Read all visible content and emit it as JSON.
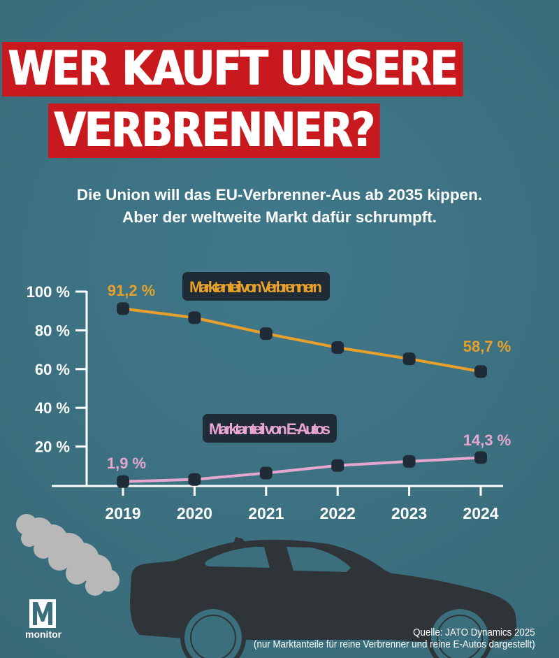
{
  "headline": {
    "line1": "WER KAUFT UNSERE",
    "line2": "VERBRENNER?"
  },
  "subtitle": {
    "line1": "Die Union will das EU-Verbrenner-Aus ab 2035 kippen.",
    "line2": "Aber der weltweite Markt dafür schrumpft."
  },
  "colors": {
    "background": "#3b6f7d",
    "headline_bg": "#c8191e",
    "verbrenner": "#e8a02a",
    "e_autos": "#e6a6cf",
    "marker": "#1f2b36",
    "label_box": "#1f2b36",
    "car": "#2f3438",
    "smoke": "#b8b8b8"
  },
  "chart_data": {
    "type": "line",
    "title": "",
    "xlabel": "",
    "ylabel": "",
    "categories": [
      "2019",
      "2020",
      "2021",
      "2022",
      "2023",
      "2024"
    ],
    "y_ticks": [
      "100 %",
      "80 %",
      "60 %",
      "40 %",
      "20 %"
    ],
    "y_tick_values": [
      100,
      80,
      60,
      40,
      20
    ],
    "ylim": [
      0,
      100
    ],
    "grid": false,
    "series": [
      {
        "name": "Marktanteil von Verbrennern",
        "values": [
          91.2,
          86.5,
          78.3,
          71.1,
          65.3,
          58.7
        ],
        "labels": {
          "first": "91,2 %",
          "last": "58,7 %"
        }
      },
      {
        "name": "Marktanteil von E-Autos",
        "values": [
          1.9,
          3.0,
          6.3,
          10.2,
          12.3,
          14.3
        ],
        "labels": {
          "first": "1,9 %",
          "last": "14,3 %"
        }
      }
    ],
    "legend": "inline-labels"
  },
  "source": {
    "line1": "Quelle: JATO Dynamics 2025",
    "line2": "(nur Marktanteile für reine Verbrenner und reine E-Autos dargestellt)"
  },
  "logo": {
    "text": "monitor"
  }
}
